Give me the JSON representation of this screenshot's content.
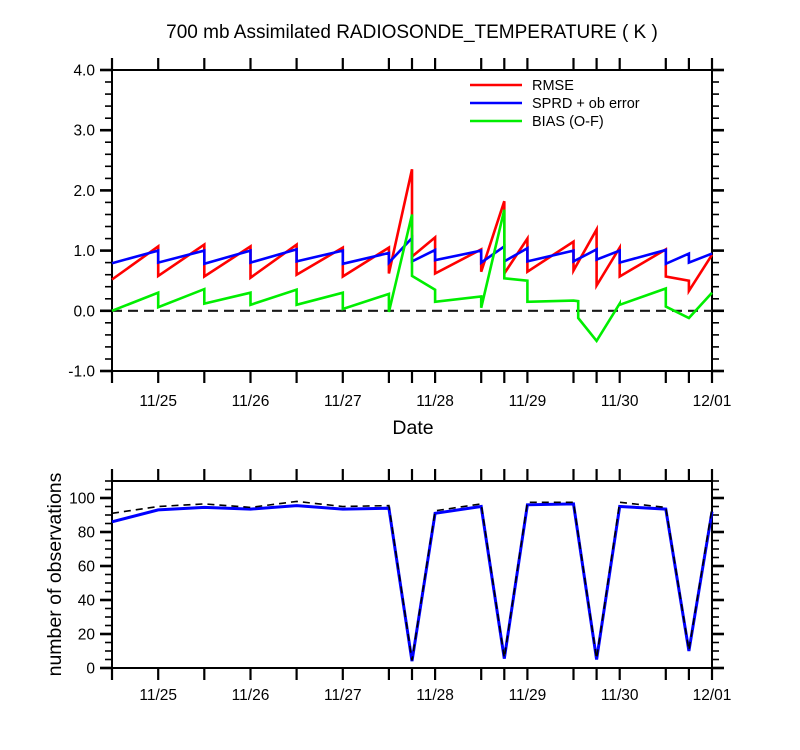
{
  "page": {
    "background": "#ffffff"
  },
  "chart_data": [
    {
      "id": "temperature-stats",
      "type": "line",
      "title": "700 mb Assimilated RADIOSONDE_TEMPERATURE ( K )",
      "xlabel": "Date",
      "ylabel": "",
      "x_unit": "date (Nov day number, 31 = Dec 01)",
      "xlim": [
        24.5,
        31.0
      ],
      "ylim": [
        -1.0,
        4.0
      ],
      "grid": false,
      "xticks": [
        24.5,
        25.0,
        25.5,
        26.0,
        26.5,
        27.0,
        27.5,
        27.75,
        28.0,
        28.5,
        28.75,
        29.0,
        29.5,
        29.75,
        30.0,
        30.5,
        30.75,
        31.0
      ],
      "xlabel_positions": [
        25,
        26,
        27,
        28,
        29,
        30,
        31
      ],
      "xlabel_texts": [
        "11/25",
        "11/26",
        "11/27",
        "11/28",
        "11/29",
        "11/30",
        "12/01"
      ],
      "yticks_major": [
        -1.0,
        0.0,
        1.0,
        2.0,
        3.0,
        4.0
      ],
      "ytick_labels": [
        "-1.0",
        "0.0",
        "1.0",
        "2.0",
        "3.0",
        "4.0"
      ],
      "ytick_minor_step": 0.2,
      "zero_line": {
        "value": 0.0,
        "style": "dashed",
        "color": "#1a1a1a"
      },
      "legend": {
        "position": "top-right-inside",
        "entries": [
          {
            "label": "RMSE",
            "color": "#ff0000"
          },
          {
            "label": "SPRD + ob error",
            "color": "#0000ff"
          },
          {
            "label": "BIAS (O-F)",
            "color": "#00ee00"
          }
        ]
      },
      "series": [
        {
          "name": "RMSE",
          "color": "#ff0000",
          "width": 2.6,
          "dash": null,
          "points": [
            [
              24.5,
              0.52
            ],
            [
              25,
              1.07
            ],
            [
              25,
              0.58
            ],
            [
              25.5,
              1.1
            ],
            [
              25.5,
              0.57
            ],
            [
              26,
              1.07
            ],
            [
              26,
              0.55
            ],
            [
              26.5,
              1.1
            ],
            [
              26.5,
              0.6
            ],
            [
              27,
              1.05
            ],
            [
              27,
              0.57
            ],
            [
              27.5,
              1.05
            ],
            [
              27.5,
              0.62
            ],
            [
              27.75,
              2.35
            ],
            [
              27.75,
              0.9
            ],
            [
              28,
              1.22
            ],
            [
              28,
              0.62
            ],
            [
              28.5,
              1.02
            ],
            [
              28.5,
              0.65
            ],
            [
              28.75,
              1.82
            ],
            [
              28.75,
              0.62
            ],
            [
              29,
              1.2
            ],
            [
              29,
              0.65
            ],
            [
              29.5,
              1.15
            ],
            [
              29.5,
              0.67
            ],
            [
              29.75,
              1.35
            ],
            [
              29.75,
              0.42
            ],
            [
              30,
              1.05
            ],
            [
              30,
              0.57
            ],
            [
              30.5,
              1.02
            ],
            [
              30.5,
              0.57
            ],
            [
              30.75,
              0.5
            ],
            [
              30.75,
              0.33
            ],
            [
              31,
              0.93
            ]
          ]
        },
        {
          "name": "SPRD + ob error",
          "color": "#0000ff",
          "width": 2.6,
          "dash": null,
          "points": [
            [
              24.5,
              0.79
            ],
            [
              25,
              1.0
            ],
            [
              25,
              0.8
            ],
            [
              25.5,
              1.0
            ],
            [
              25.5,
              0.78
            ],
            [
              26,
              1.0
            ],
            [
              26,
              0.8
            ],
            [
              26.5,
              1.02
            ],
            [
              26.5,
              0.82
            ],
            [
              27,
              1.0
            ],
            [
              27,
              0.78
            ],
            [
              27.5,
              0.96
            ],
            [
              27.5,
              0.8
            ],
            [
              27.75,
              1.21
            ],
            [
              27.75,
              0.82
            ],
            [
              28,
              1.01
            ],
            [
              28,
              0.84
            ],
            [
              28.5,
              1.0
            ],
            [
              28.5,
              0.8
            ],
            [
              28.75,
              1.07
            ],
            [
              28.75,
              0.82
            ],
            [
              29,
              1.04
            ],
            [
              29,
              0.82
            ],
            [
              29.5,
              1.0
            ],
            [
              29.5,
              0.82
            ],
            [
              29.75,
              1.02
            ],
            [
              29.75,
              0.85
            ],
            [
              30,
              1.0
            ],
            [
              30,
              0.8
            ],
            [
              30.5,
              1.01
            ],
            [
              30.5,
              0.78
            ],
            [
              30.75,
              0.95
            ],
            [
              30.75,
              0.8
            ],
            [
              31,
              0.95
            ]
          ]
        },
        {
          "name": "BIAS (O-F)",
          "color": "#00ee00",
          "width": 2.6,
          "dash": null,
          "points": [
            [
              24.5,
              0.0
            ],
            [
              25,
              0.3
            ],
            [
              25,
              0.06
            ],
            [
              25.5,
              0.36
            ],
            [
              25.5,
              0.12
            ],
            [
              26,
              0.3
            ],
            [
              26,
              0.1
            ],
            [
              26.5,
              0.35
            ],
            [
              26.5,
              0.1
            ],
            [
              27,
              0.3
            ],
            [
              27,
              0.03
            ],
            [
              27.5,
              0.28
            ],
            [
              27.5,
              -0.02
            ],
            [
              27.75,
              1.6
            ],
            [
              27.75,
              0.58
            ],
            [
              28,
              0.35
            ],
            [
              28,
              0.15
            ],
            [
              28.5,
              0.24
            ],
            [
              28.5,
              0.05
            ],
            [
              28.75,
              1.68
            ],
            [
              28.75,
              0.54
            ],
            [
              29,
              0.5
            ],
            [
              29,
              0.15
            ],
            [
              29.5,
              0.17
            ],
            [
              29.55,
              0.16
            ],
            [
              29.55,
              -0.12
            ],
            [
              29.75,
              -0.5
            ],
            [
              30,
              0.12
            ],
            [
              30,
              0.1
            ],
            [
              30.5,
              0.37
            ],
            [
              30.5,
              0.07
            ],
            [
              30.75,
              -0.12
            ],
            [
              31,
              0.3
            ]
          ]
        }
      ]
    },
    {
      "id": "observation-count",
      "type": "line",
      "title": "",
      "xlabel": "",
      "ylabel": "number of observations",
      "xlim": [
        24.5,
        31.0
      ],
      "ylim": [
        0,
        110
      ],
      "grid": false,
      "xticks": [
        24.5,
        25.0,
        25.5,
        26.0,
        26.5,
        27.0,
        27.5,
        27.75,
        28.0,
        28.5,
        28.75,
        29.0,
        29.5,
        29.75,
        30.0,
        30.5,
        30.75,
        31.0
      ],
      "xlabel_positions": [
        25,
        26,
        27,
        28,
        29,
        30,
        31
      ],
      "xlabel_texts": [
        "11/25",
        "11/26",
        "11/27",
        "11/28",
        "11/29",
        "11/30",
        "12/01"
      ],
      "yticks_major": [
        0,
        20,
        40,
        60,
        80,
        100
      ],
      "ytick_labels": [
        "0",
        "20",
        "40",
        "60",
        "80",
        "100"
      ],
      "ytick_minor_step": 5,
      "zero_line": null,
      "legend": null,
      "series": [
        {
          "name": "observations-solid",
          "color": "#0000ff",
          "width": 3,
          "dash": null,
          "points": [
            [
              24.5,
              86
            ],
            [
              25,
              93
            ],
            [
              25.5,
              94.5
            ],
            [
              26,
              93.5
            ],
            [
              26.5,
              95.5
            ],
            [
              27,
              93.5
            ],
            [
              27.5,
              94
            ],
            [
              27.75,
              4
            ],
            [
              28,
              91
            ],
            [
              28.5,
              95
            ],
            [
              28.75,
              5.5
            ],
            [
              29,
              96
            ],
            [
              29.5,
              96.5
            ],
            [
              29.75,
              5
            ],
            [
              30,
              95
            ],
            [
              30.5,
              93.5
            ],
            [
              30.75,
              10
            ],
            [
              31,
              92
            ]
          ]
        },
        {
          "name": "observations-dashed",
          "color": "#000000",
          "width": 1.6,
          "dash": "7 5",
          "points": [
            [
              24.5,
              91
            ],
            [
              25,
              95
            ],
            [
              25.5,
              96.5
            ],
            [
              26,
              94.5
            ],
            [
              26.5,
              98
            ],
            [
              27,
              95
            ],
            [
              27.5,
              95.5
            ],
            [
              27.75,
              4.5
            ],
            [
              28,
              92.5
            ],
            [
              28.5,
              96.5
            ],
            [
              28.75,
              6
            ],
            [
              29,
              97.5
            ],
            [
              29.5,
              97.5
            ],
            [
              29.75,
              5.5
            ],
            [
              30,
              97.5
            ],
            [
              30.5,
              94.5
            ],
            [
              30.75,
              10.5
            ],
            [
              31,
              94
            ]
          ]
        }
      ]
    }
  ]
}
